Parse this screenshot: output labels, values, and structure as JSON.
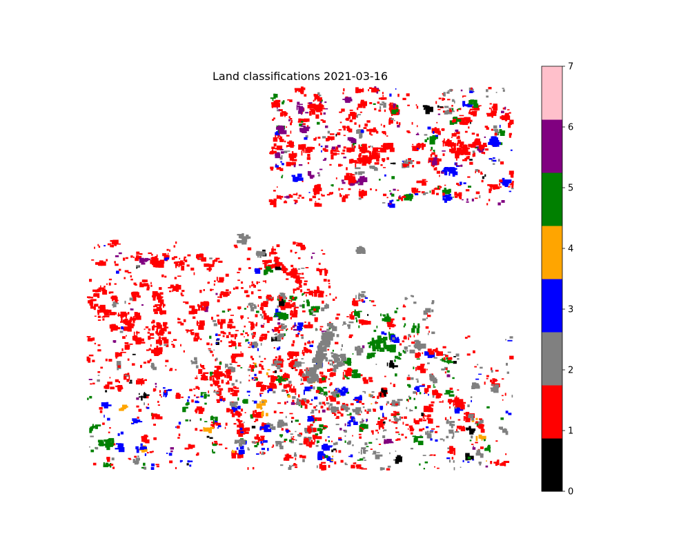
{
  "chart_data": {
    "type": "heatmap",
    "title": "Land classifications 2021-03-16",
    "xlabel": "",
    "ylabel": "",
    "axes_visible": false,
    "colorbar": {
      "position": "right",
      "range": [
        0,
        7
      ],
      "ticks": [
        "0",
        "1",
        "2",
        "3",
        "4",
        "5",
        "6",
        "7"
      ],
      "classes": [
        {
          "value": 0,
          "color": "#000000"
        },
        {
          "value": 1,
          "color": "#ff0000"
        },
        {
          "value": 2,
          "color": "#808080"
        },
        {
          "value": 3,
          "color": "#0000ff"
        },
        {
          "value": 4,
          "color": "#ffa500"
        },
        {
          "value": 5,
          "color": "#008000"
        },
        {
          "value": 6,
          "color": "#800080"
        },
        {
          "value": 7,
          "color": "#ffc0cb"
        }
      ]
    },
    "no_data_color": "#ffffff"
  }
}
